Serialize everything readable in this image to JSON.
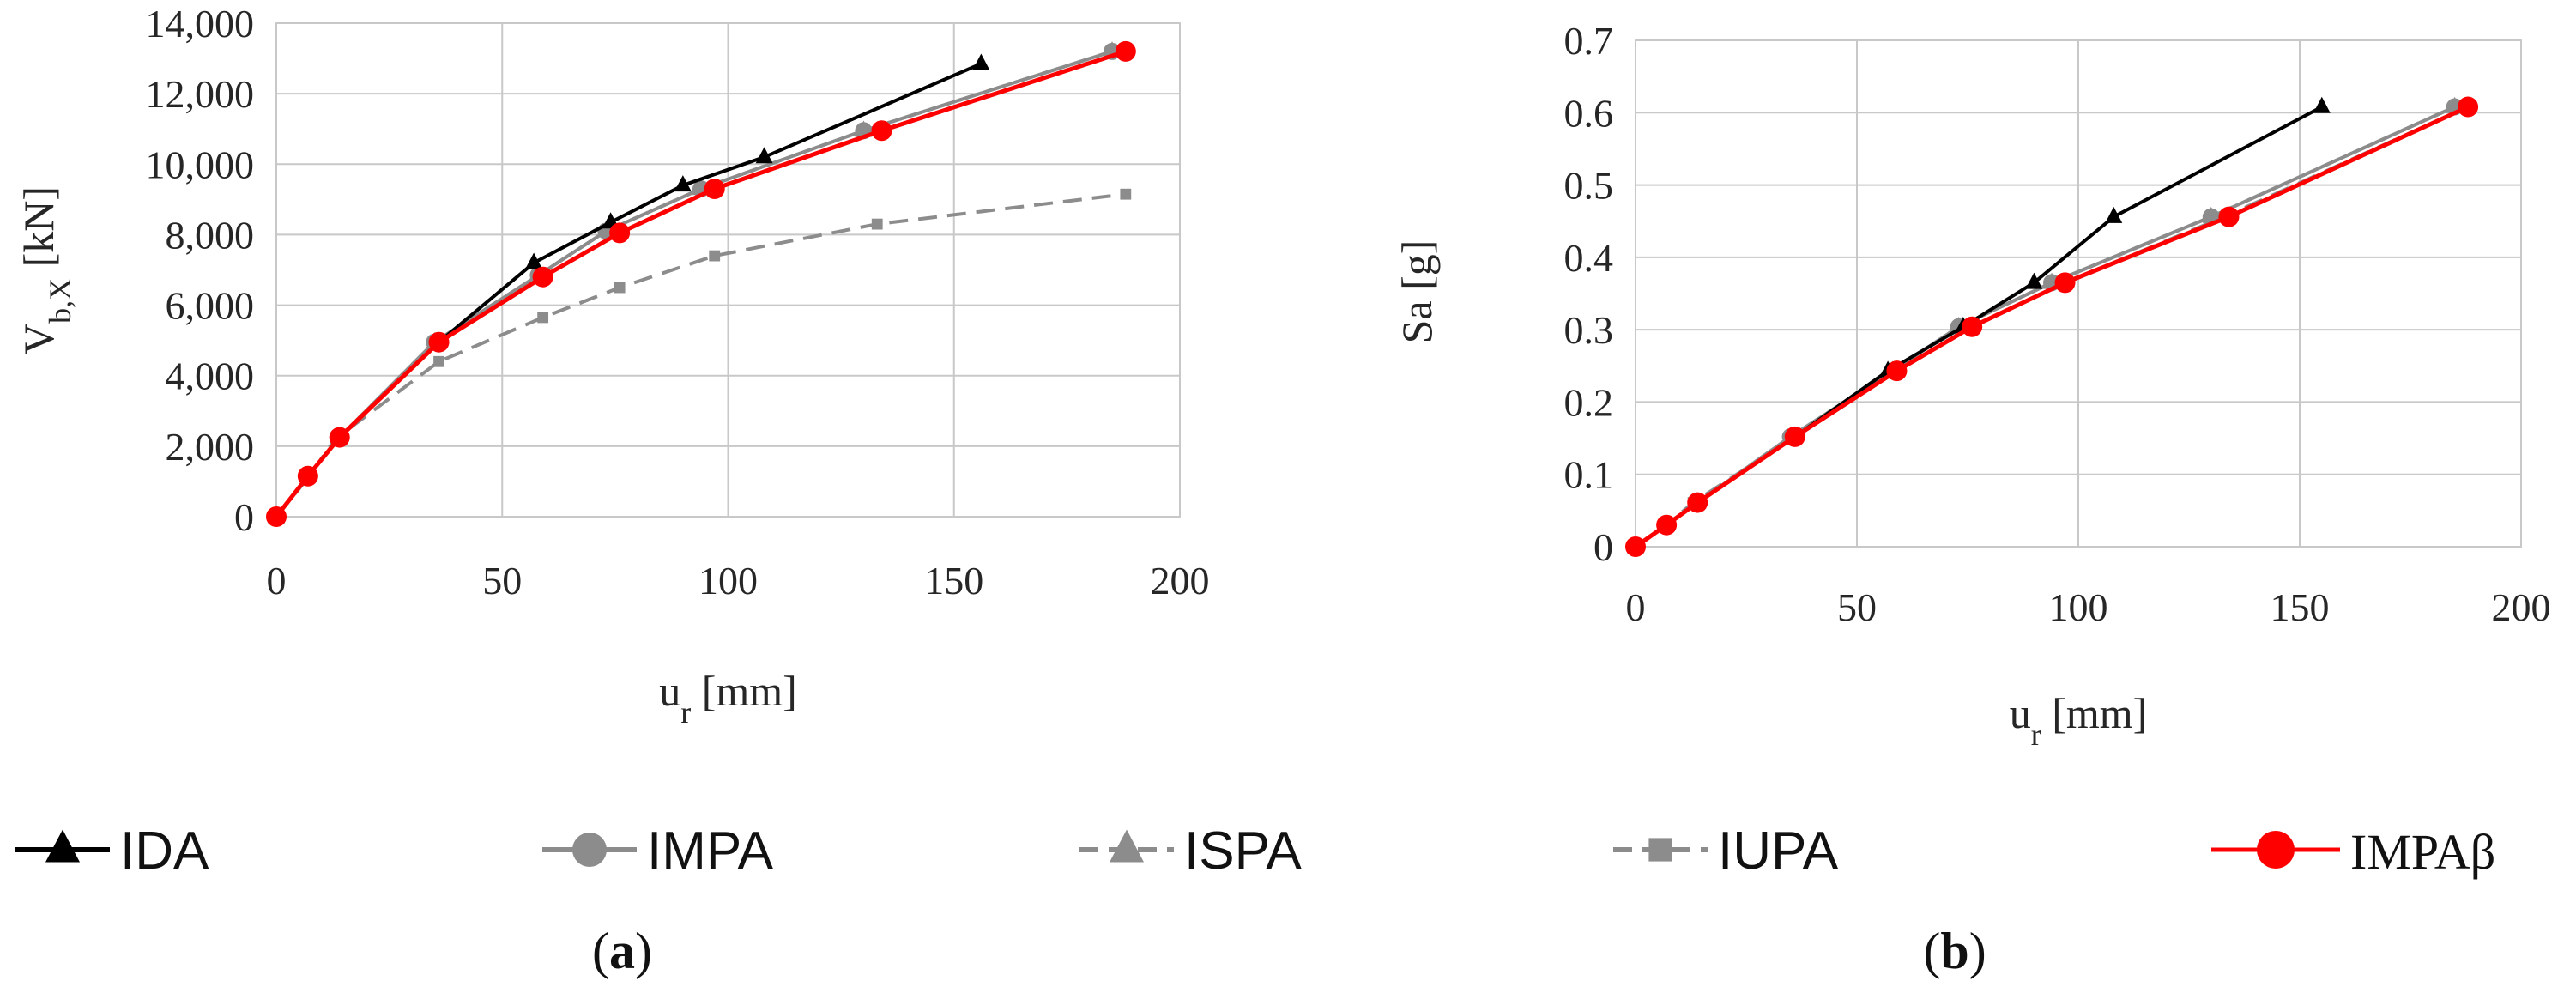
{
  "figure": {
    "legend": [
      {
        "key": "IDA",
        "label": "IDA",
        "color": "#000000",
        "marker": "triangle",
        "dash": false
      },
      {
        "key": "IMPA",
        "label": "IMPA",
        "color": "#8c8c8c",
        "marker": "circle",
        "dash": false
      },
      {
        "key": "ISPA",
        "label": "ISPA",
        "color": "#8c8c8c",
        "marker": "triangle",
        "dash": true
      },
      {
        "key": "IUPA",
        "label": "IUPA",
        "color": "#8c8c8c",
        "marker": "square",
        "dash": true
      },
      {
        "key": "IMPAb",
        "label": "IMPAβ",
        "color": "#ff0000",
        "marker": "circle",
        "dash": false
      }
    ],
    "panel_labels": [
      {
        "open": "(",
        "letter": "a",
        "close": ")"
      },
      {
        "open": "(",
        "letter": "b",
        "close": ")"
      }
    ]
  },
  "chart_data": [
    {
      "id": "a",
      "type": "line",
      "title": "",
      "xlabel": {
        "main": "u",
        "sub": "r",
        "unit": " [mm]"
      },
      "ylabel": {
        "main": "V",
        "sub": "b,X",
        "unit": " [kN]"
      },
      "xlim": [
        0,
        200
      ],
      "ylim": [
        0,
        14000
      ],
      "xticks": [
        0,
        50,
        100,
        150,
        200
      ],
      "yticks": [
        0,
        2000,
        4000,
        6000,
        8000,
        10000,
        12000,
        14000
      ],
      "xtick_labels": [
        "0",
        "50",
        "100",
        "150",
        "200"
      ],
      "ytick_labels": [
        "0",
        "2,000",
        "4,000",
        "6,000",
        "8,000",
        "10,000",
        "12,000",
        "14,000"
      ],
      "grid": true,
      "series": [
        {
          "name": "IDA",
          "x": [
            0,
            7,
            14,
            36,
            57,
            74,
            90,
            108,
            156
          ],
          "y": [
            0,
            1150,
            2250,
            4950,
            7200,
            8350,
            9400,
            10200,
            12850
          ]
        },
        {
          "name": "IMPA",
          "x": [
            0,
            7,
            14,
            35,
            58,
            73,
            94,
            130,
            185
          ],
          "y": [
            0,
            1150,
            2250,
            4950,
            6850,
            8100,
            9300,
            10950,
            13200
          ]
        },
        {
          "name": "ISPA",
          "x": [
            0,
            7,
            14,
            35,
            58,
            73,
            94,
            130,
            185
          ],
          "y": [
            0,
            1150,
            2250,
            4950,
            6850,
            8100,
            9300,
            10950,
            13200
          ]
        },
        {
          "name": "IUPA",
          "x": [
            0,
            7,
            13,
            36,
            59,
            76,
            97,
            133,
            188
          ],
          "y": [
            0,
            1100,
            2200,
            4400,
            5650,
            6500,
            7400,
            8300,
            9150
          ]
        },
        {
          "name": "IMPAβ",
          "x": [
            0,
            7,
            14,
            36,
            59,
            76,
            97,
            134,
            188
          ],
          "y": [
            0,
            1150,
            2250,
            4950,
            6800,
            8050,
            9300,
            10950,
            13200
          ]
        }
      ]
    },
    {
      "id": "b",
      "type": "line",
      "title": "",
      "xlabel": {
        "main": "u",
        "sub": "r",
        "unit": " [mm]"
      },
      "ylabel": {
        "main": "Sa [g]",
        "sub": "",
        "unit": ""
      },
      "xlim": [
        0,
        200
      ],
      "ylim": [
        0,
        0.7
      ],
      "xticks": [
        0,
        50,
        100,
        150,
        200
      ],
      "yticks": [
        0,
        0.1,
        0.2,
        0.3,
        0.4,
        0.5,
        0.6,
        0.7
      ],
      "xtick_labels": [
        "0",
        "50",
        "100",
        "150",
        "200"
      ],
      "ytick_labels": [
        "0",
        "0.1",
        "0.2",
        "0.3",
        "0.4",
        "0.5",
        "0.6",
        "0.7"
      ],
      "grid": true,
      "series": [
        {
          "name": "IDA",
          "x": [
            0,
            7,
            14,
            36,
            57,
            74,
            90,
            108,
            155
          ],
          "y": [
            0,
            0.03,
            0.061,
            0.152,
            0.243,
            0.304,
            0.365,
            0.456,
            0.608
          ]
        },
        {
          "name": "IMPA",
          "x": [
            0,
            7,
            14,
            35,
            58,
            73,
            94,
            130,
            185
          ],
          "y": [
            0,
            0.03,
            0.061,
            0.152,
            0.243,
            0.304,
            0.365,
            0.456,
            0.608
          ]
        },
        {
          "name": "ISPA",
          "x": [
            0,
            7,
            14,
            35,
            58,
            73,
            94,
            130,
            185
          ],
          "y": [
            0,
            0.03,
            0.061,
            0.152,
            0.243,
            0.304,
            0.365,
            0.456,
            0.608
          ]
        },
        {
          "name": "IUPA",
          "x": [
            0,
            7,
            13,
            36,
            59,
            76,
            97,
            133,
            188
          ],
          "y": [
            0,
            0.03,
            0.061,
            0.152,
            0.243,
            0.304,
            0.365,
            0.456,
            0.608
          ]
        },
        {
          "name": "IMPAβ",
          "x": [
            0,
            7,
            14,
            36,
            59,
            76,
            97,
            134,
            188
          ],
          "y": [
            0,
            0.03,
            0.061,
            0.152,
            0.243,
            0.304,
            0.365,
            0.456,
            0.608
          ]
        }
      ]
    }
  ]
}
